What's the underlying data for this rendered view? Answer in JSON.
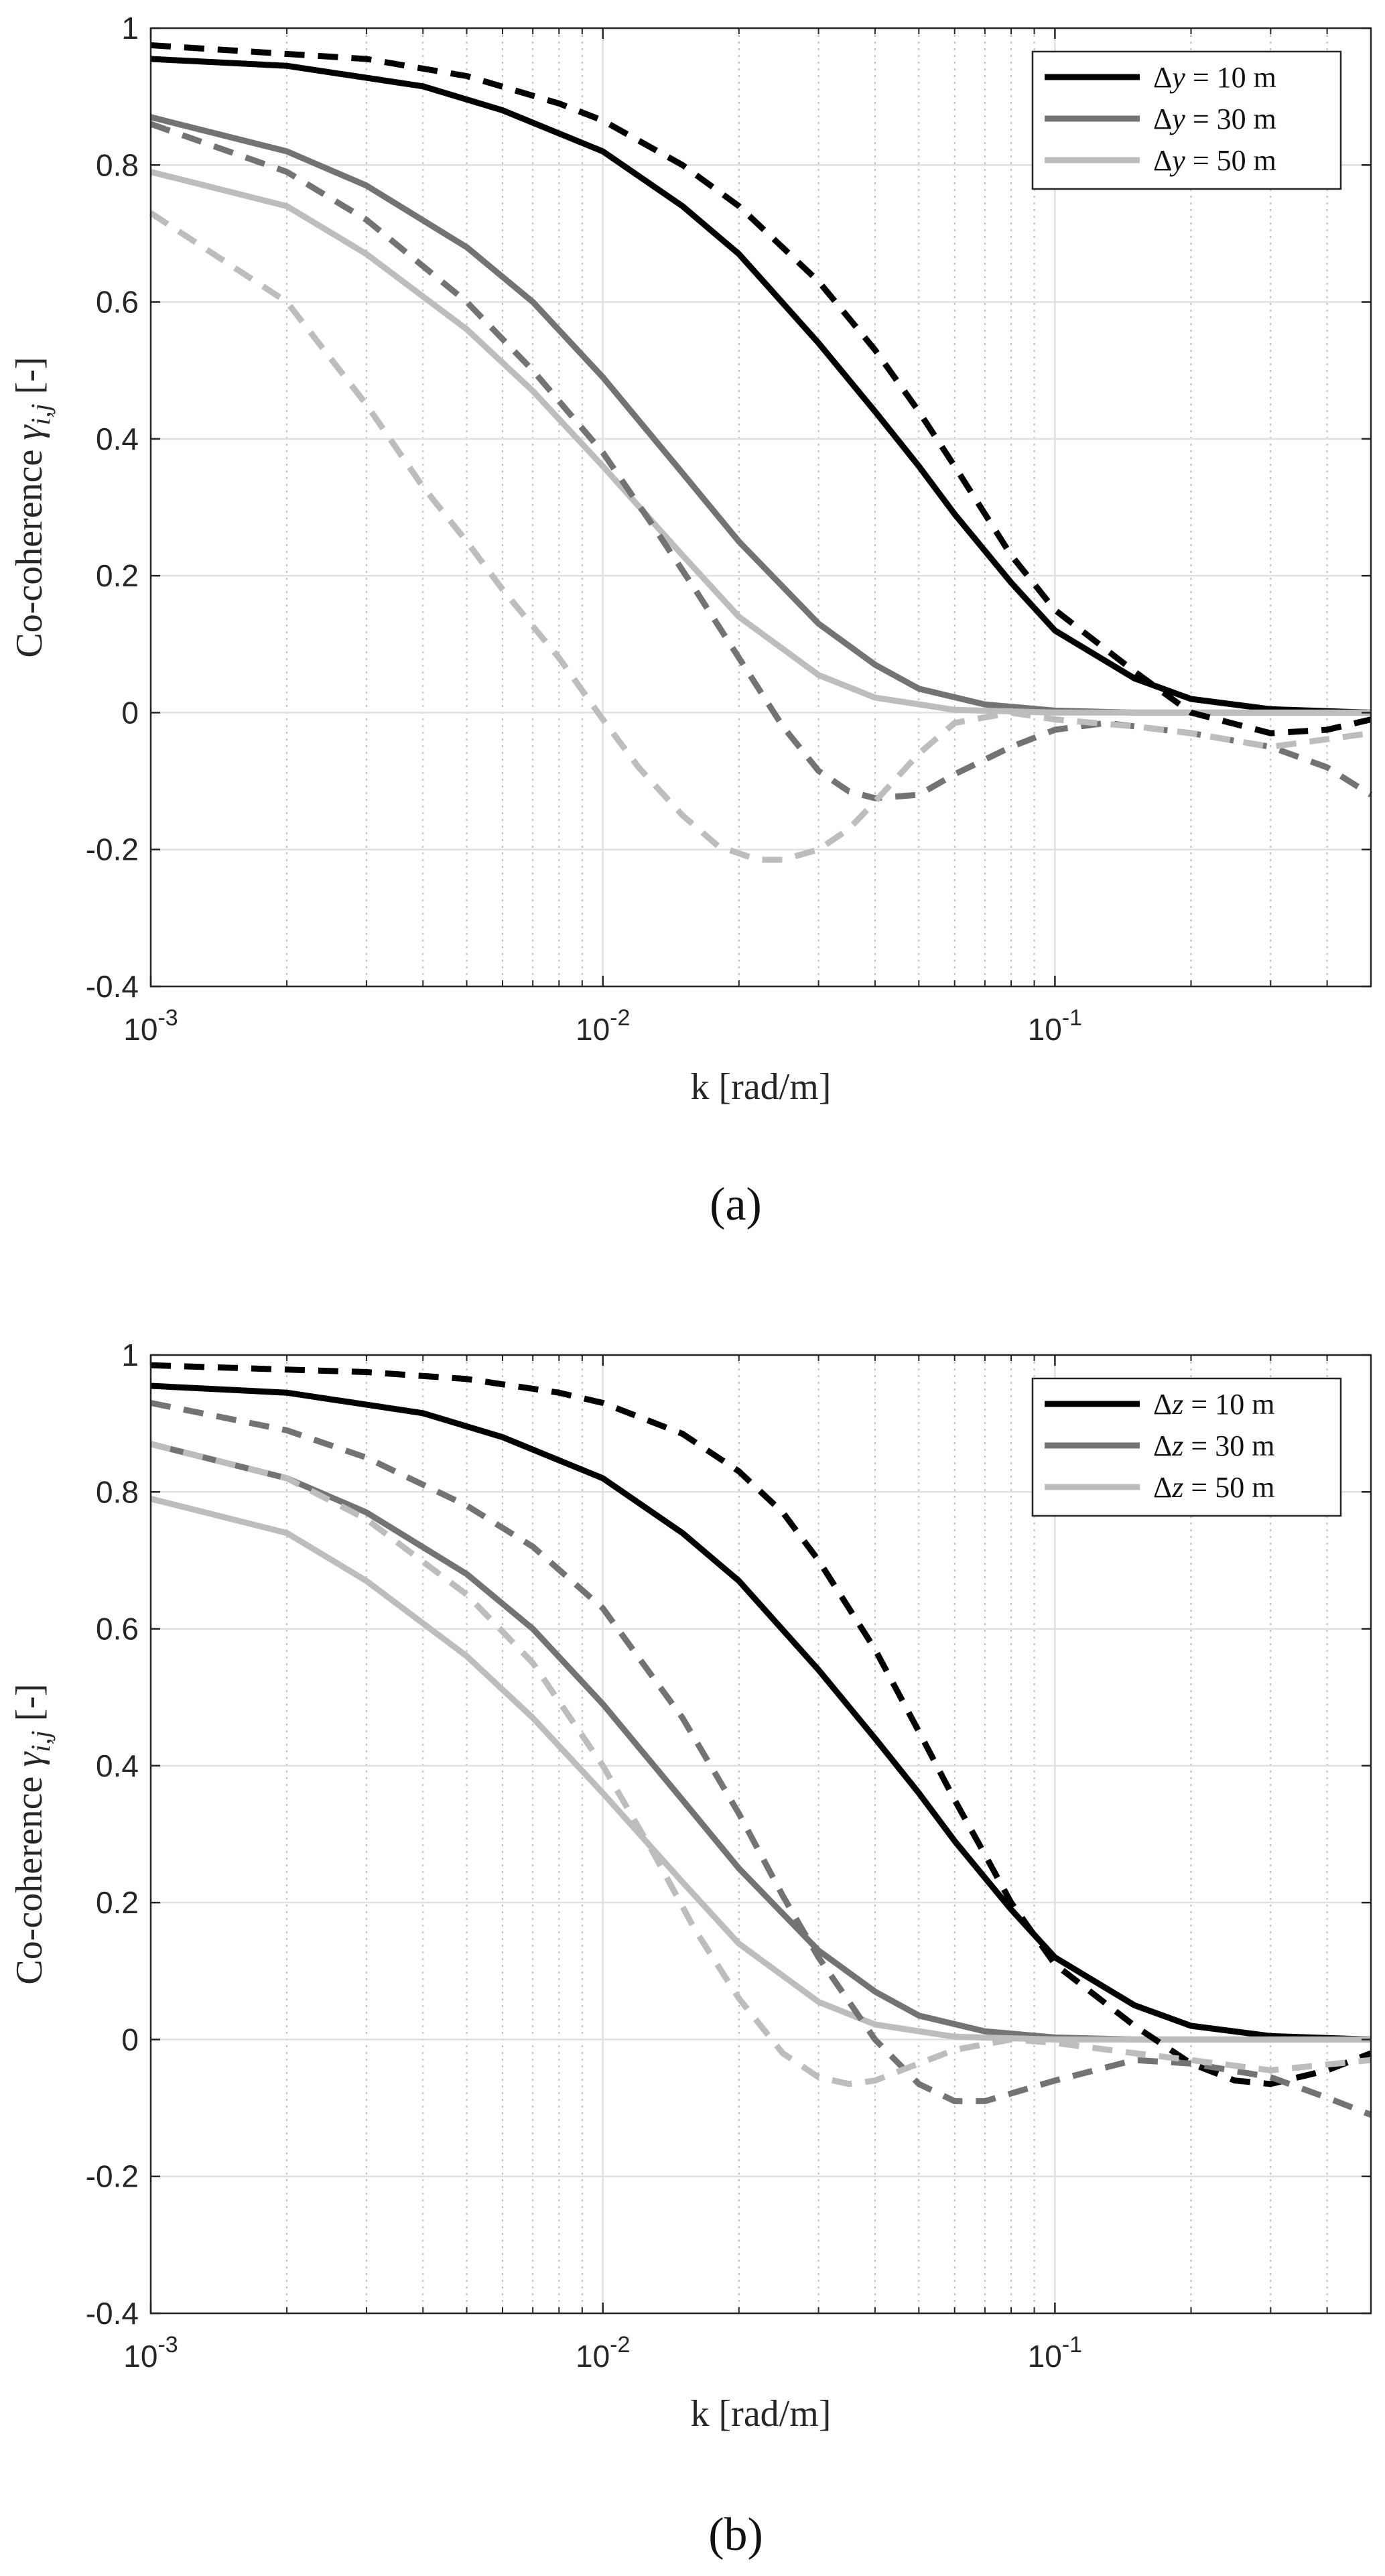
{
  "chart_data": [
    {
      "type": "line",
      "caption": "(a)",
      "xlabel": "k [rad/m]",
      "ylabel": "Co-coherence γ_{i,j} [-]",
      "xscale": "log",
      "xlim": [
        0.001,
        0.5
      ],
      "ylim": [
        -0.4,
        1
      ],
      "xticks": [
        {
          "value": 0.001,
          "base": "10",
          "exp": "-3"
        },
        {
          "value": 0.01,
          "base": "10",
          "exp": "-2"
        },
        {
          "value": 0.1,
          "base": "10",
          "exp": "-1"
        }
      ],
      "yticks": [
        {
          "value": 1,
          "label": "1"
        },
        {
          "value": 0.8,
          "label": "0.8"
        },
        {
          "value": 0.6,
          "label": "0.6"
        },
        {
          "value": 0.4,
          "label": "0.4"
        },
        {
          "value": 0.2,
          "label": "0.2"
        },
        {
          "value": 0,
          "label": "0"
        },
        {
          "value": -0.2,
          "label": "-0.2"
        },
        {
          "value": -0.4,
          "label": "-0.4"
        }
      ],
      "grid": true,
      "legend": "top-right",
      "legend_entries": [
        {
          "prefix": "Δ",
          "var": "y",
          "rest": " = 10 m",
          "color": "#000000"
        },
        {
          "prefix": "Δ",
          "var": "y",
          "rest": " = 30 m",
          "color": "#737373"
        },
        {
          "prefix": "Δ",
          "var": "y",
          "rest": " = 50 m",
          "color": "#bdbdbd"
        }
      ],
      "series": [
        {
          "style": "solid",
          "color": "#000000",
          "x": [
            0.001,
            0.002,
            0.004,
            0.006,
            0.01,
            0.015,
            0.02,
            0.03,
            0.04,
            0.05,
            0.06,
            0.08,
            0.1,
            0.15,
            0.2,
            0.3,
            0.5
          ],
          "y": [
            0.955,
            0.945,
            0.915,
            0.88,
            0.82,
            0.74,
            0.67,
            0.54,
            0.44,
            0.36,
            0.29,
            0.19,
            0.12,
            0.05,
            0.02,
            0.005,
            0.0
          ]
        },
        {
          "style": "solid",
          "color": "#737373",
          "x": [
            0.001,
            0.002,
            0.003,
            0.005,
            0.007,
            0.01,
            0.015,
            0.02,
            0.03,
            0.04,
            0.05,
            0.07,
            0.1,
            0.15,
            0.5
          ],
          "y": [
            0.87,
            0.82,
            0.77,
            0.68,
            0.6,
            0.49,
            0.35,
            0.25,
            0.13,
            0.07,
            0.035,
            0.012,
            0.003,
            0.0,
            0.0
          ]
        },
        {
          "style": "solid",
          "color": "#bdbdbd",
          "x": [
            0.001,
            0.002,
            0.003,
            0.005,
            0.007,
            0.01,
            0.015,
            0.02,
            0.03,
            0.04,
            0.06,
            0.1,
            0.5
          ],
          "y": [
            0.79,
            0.74,
            0.67,
            0.56,
            0.47,
            0.36,
            0.23,
            0.14,
            0.055,
            0.022,
            0.004,
            0.0,
            0.0
          ]
        },
        {
          "style": "dashed",
          "color": "#000000",
          "x": [
            0.001,
            0.003,
            0.005,
            0.008,
            0.01,
            0.015,
            0.02,
            0.03,
            0.04,
            0.05,
            0.06,
            0.08,
            0.1,
            0.15,
            0.2,
            0.3,
            0.4,
            0.5
          ],
          "y": [
            0.975,
            0.955,
            0.93,
            0.89,
            0.865,
            0.8,
            0.74,
            0.63,
            0.53,
            0.44,
            0.36,
            0.23,
            0.15,
            0.06,
            0.0,
            -0.03,
            -0.025,
            -0.01
          ]
        },
        {
          "style": "dashed",
          "color": "#737373",
          "x": [
            0.001,
            0.002,
            0.003,
            0.005,
            0.007,
            0.01,
            0.013,
            0.016,
            0.02,
            0.025,
            0.03,
            0.035,
            0.04,
            0.05,
            0.06,
            0.08,
            0.1,
            0.13,
            0.2,
            0.3,
            0.4,
            0.5
          ],
          "y": [
            0.86,
            0.79,
            0.72,
            0.6,
            0.5,
            0.38,
            0.27,
            0.18,
            0.08,
            -0.02,
            -0.085,
            -0.115,
            -0.125,
            -0.12,
            -0.09,
            -0.05,
            -0.025,
            -0.015,
            -0.03,
            -0.05,
            -0.08,
            -0.12
          ]
        },
        {
          "style": "dashed",
          "color": "#bdbdbd",
          "x": [
            0.001,
            0.002,
            0.003,
            0.004,
            0.005,
            0.006,
            0.008,
            0.01,
            0.012,
            0.015,
            0.018,
            0.022,
            0.025,
            0.03,
            0.035,
            0.04,
            0.05,
            0.06,
            0.08,
            0.1,
            0.15,
            0.2,
            0.3,
            0.5
          ],
          "y": [
            0.73,
            0.6,
            0.45,
            0.33,
            0.25,
            0.18,
            0.08,
            -0.01,
            -0.08,
            -0.15,
            -0.195,
            -0.215,
            -0.215,
            -0.2,
            -0.17,
            -0.13,
            -0.06,
            -0.015,
            0.0,
            -0.01,
            -0.02,
            -0.03,
            -0.05,
            -0.03
          ]
        }
      ]
    },
    {
      "type": "line",
      "caption": "(b)",
      "xlabel": "k [rad/m]",
      "ylabel": "Co-coherence γ_{i,j} [-]",
      "xscale": "log",
      "xlim": [
        0.001,
        0.5
      ],
      "ylim": [
        -0.4,
        1
      ],
      "xticks": [
        {
          "value": 0.001,
          "base": "10",
          "exp": "-3"
        },
        {
          "value": 0.01,
          "base": "10",
          "exp": "-2"
        },
        {
          "value": 0.1,
          "base": "10",
          "exp": "-1"
        }
      ],
      "yticks": [
        {
          "value": 1,
          "label": "1"
        },
        {
          "value": 0.8,
          "label": "0.8"
        },
        {
          "value": 0.6,
          "label": "0.6"
        },
        {
          "value": 0.4,
          "label": "0.4"
        },
        {
          "value": 0.2,
          "label": "0.2"
        },
        {
          "value": 0,
          "label": "0"
        },
        {
          "value": -0.2,
          "label": "-0.2"
        },
        {
          "value": -0.4,
          "label": "-0.4"
        }
      ],
      "grid": true,
      "legend": "top-right",
      "legend_entries": [
        {
          "prefix": "Δ",
          "var": "z",
          "rest": " = 10 m",
          "color": "#000000"
        },
        {
          "prefix": "Δ",
          "var": "z",
          "rest": " = 30 m",
          "color": "#737373"
        },
        {
          "prefix": "Δ",
          "var": "z",
          "rest": " = 50 m",
          "color": "#bdbdbd"
        }
      ],
      "series": [
        {
          "style": "solid",
          "color": "#000000",
          "x": [
            0.001,
            0.002,
            0.004,
            0.006,
            0.01,
            0.015,
            0.02,
            0.03,
            0.04,
            0.05,
            0.06,
            0.08,
            0.1,
            0.15,
            0.2,
            0.3,
            0.5
          ],
          "y": [
            0.955,
            0.945,
            0.915,
            0.88,
            0.82,
            0.74,
            0.67,
            0.54,
            0.44,
            0.36,
            0.29,
            0.19,
            0.12,
            0.05,
            0.02,
            0.005,
            0.0
          ]
        },
        {
          "style": "solid",
          "color": "#737373",
          "x": [
            0.001,
            0.002,
            0.003,
            0.005,
            0.007,
            0.01,
            0.015,
            0.02,
            0.03,
            0.04,
            0.05,
            0.07,
            0.1,
            0.15,
            0.5
          ],
          "y": [
            0.87,
            0.82,
            0.77,
            0.68,
            0.6,
            0.49,
            0.35,
            0.25,
            0.13,
            0.07,
            0.035,
            0.012,
            0.003,
            0.0,
            0.0
          ]
        },
        {
          "style": "solid",
          "color": "#bdbdbd",
          "x": [
            0.001,
            0.002,
            0.003,
            0.005,
            0.007,
            0.01,
            0.015,
            0.02,
            0.03,
            0.04,
            0.06,
            0.1,
            0.5
          ],
          "y": [
            0.79,
            0.74,
            0.67,
            0.56,
            0.47,
            0.36,
            0.23,
            0.14,
            0.055,
            0.022,
            0.004,
            0.0,
            0.0
          ]
        },
        {
          "style": "dashed",
          "color": "#000000",
          "x": [
            0.001,
            0.003,
            0.005,
            0.008,
            0.01,
            0.015,
            0.02,
            0.025,
            0.03,
            0.04,
            0.05,
            0.06,
            0.07,
            0.08,
            0.1,
            0.15,
            0.2,
            0.25,
            0.3,
            0.4,
            0.5
          ],
          "y": [
            0.985,
            0.975,
            0.965,
            0.945,
            0.93,
            0.885,
            0.83,
            0.77,
            0.7,
            0.57,
            0.45,
            0.35,
            0.27,
            0.2,
            0.11,
            0.02,
            -0.035,
            -0.06,
            -0.065,
            -0.045,
            -0.02
          ]
        },
        {
          "style": "dashed",
          "color": "#737373",
          "x": [
            0.001,
            0.002,
            0.003,
            0.005,
            0.007,
            0.01,
            0.015,
            0.02,
            0.025,
            0.03,
            0.04,
            0.05,
            0.06,
            0.07,
            0.1,
            0.15,
            0.2,
            0.3,
            0.4,
            0.5
          ],
          "y": [
            0.93,
            0.89,
            0.85,
            0.78,
            0.72,
            0.63,
            0.47,
            0.33,
            0.21,
            0.12,
            0.0,
            -0.065,
            -0.09,
            -0.09,
            -0.06,
            -0.03,
            -0.035,
            -0.055,
            -0.085,
            -0.11
          ]
        },
        {
          "style": "dashed",
          "color": "#bdbdbd",
          "x": [
            0.001,
            0.002,
            0.003,
            0.005,
            0.007,
            0.01,
            0.013,
            0.016,
            0.02,
            0.025,
            0.03,
            0.035,
            0.04,
            0.05,
            0.06,
            0.08,
            0.1,
            0.15,
            0.2,
            0.3,
            0.5
          ],
          "y": [
            0.87,
            0.82,
            0.76,
            0.65,
            0.55,
            0.4,
            0.27,
            0.16,
            0.06,
            -0.02,
            -0.055,
            -0.065,
            -0.06,
            -0.035,
            -0.015,
            0.0,
            -0.005,
            -0.02,
            -0.03,
            -0.045,
            -0.03
          ]
        }
      ]
    }
  ]
}
